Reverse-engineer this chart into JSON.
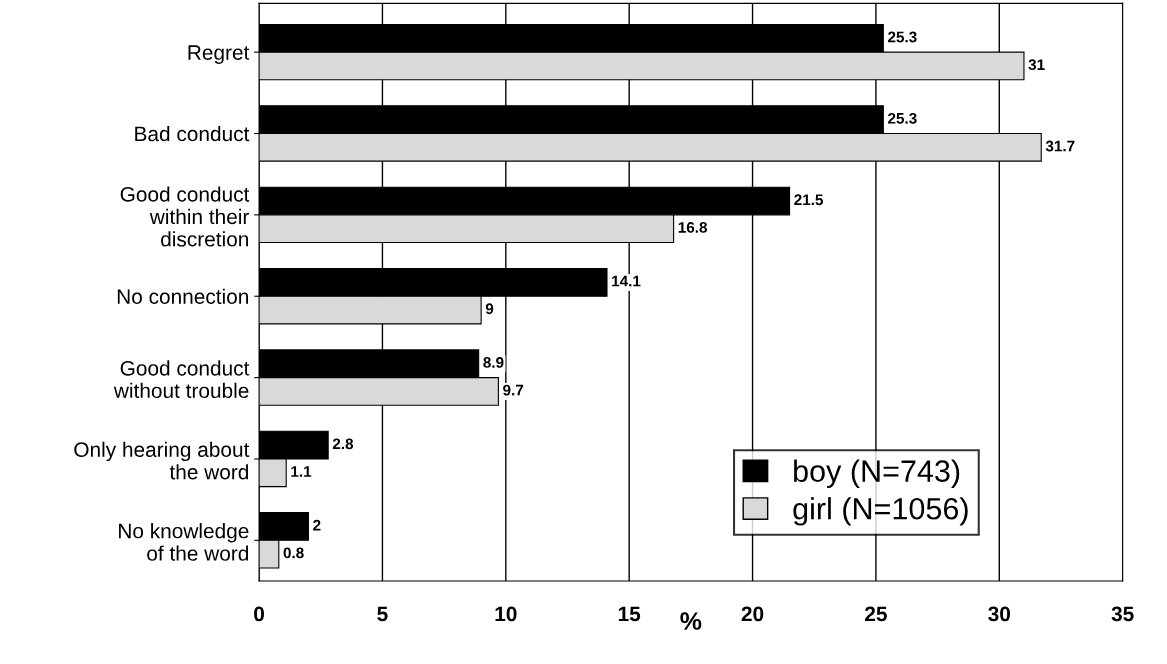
{
  "chart_data": {
    "type": "bar",
    "orientation": "horizontal",
    "xlabel": "%",
    "categories": [
      "Regret",
      "Bad conduct",
      "Good conduct\nwithin their\ndiscretion",
      "No connection",
      "Good conduct\nwithout trouble",
      "Only hearing about\nthe word",
      "No knowledge\nof the word"
    ],
    "series": [
      {
        "name": "boy (N=743)",
        "color": "#000000",
        "values": [
          25.3,
          25.3,
          21.5,
          14.1,
          8.9,
          2.8,
          2
        ]
      },
      {
        "name": "girl (N=1056)",
        "color": "#d9d9d9",
        "values": [
          31,
          31.7,
          16.8,
          9,
          9.7,
          1.1,
          0.8
        ]
      }
    ],
    "xlim": [
      0,
      35
    ],
    "xticks": [
      0,
      5,
      10,
      15,
      20,
      25,
      30,
      35
    ],
    "grid": "x",
    "legend": "bottom right",
    "data_labels": true
  }
}
